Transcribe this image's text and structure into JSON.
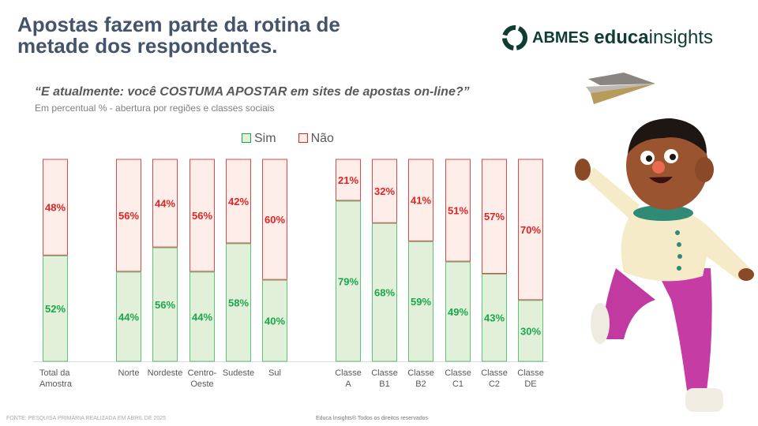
{
  "header": {
    "title_line1": "Apostas fazem parte da rotina de",
    "title_line2": "metade dos respondentes."
  },
  "logo": {
    "abmes": "ABMES",
    "educa": "educa",
    "insights": "insights"
  },
  "footer": {
    "source": "FONTE: PESQUISA PRIMÁRIA REALIZADA EM ABRIL DE 2025",
    "rights": "Educa Insights® Todos os direitos reservados"
  },
  "chart_data": {
    "type": "bar",
    "stacked": true,
    "title": "“E atualmente: você COSTUMA APOSTAR em sites de apostas on-line?”",
    "subtitle": "Em percentual % - abertura por regiões e classes sociais",
    "legend_position": "top",
    "categories": [
      [
        "Total da",
        "Amostra"
      ],
      [
        "Norte"
      ],
      [
        "Nordeste"
      ],
      [
        "Centro-",
        "Oeste"
      ],
      [
        "Sudeste"
      ],
      [
        "Sul"
      ],
      [
        "Classe",
        "A"
      ],
      [
        "Classe",
        "B1"
      ],
      [
        "Classe",
        "B2"
      ],
      [
        "Classe",
        "C1"
      ],
      [
        "Classe",
        "C2"
      ],
      [
        "Classe",
        "DE"
      ]
    ],
    "series": [
      {
        "name": "Sim",
        "color": "#1aa64a",
        "fill": "#e2f0d9",
        "values": [
          52,
          44,
          56,
          44,
          58,
          40,
          79,
          68,
          59,
          49,
          43,
          30
        ]
      },
      {
        "name": "Não",
        "color": "#e02424",
        "fill": "#fdeee9",
        "values": [
          48,
          56,
          44,
          56,
          42,
          60,
          21,
          32,
          41,
          51,
          57,
          70
        ]
      }
    ],
    "ylim": [
      0,
      100
    ]
  }
}
